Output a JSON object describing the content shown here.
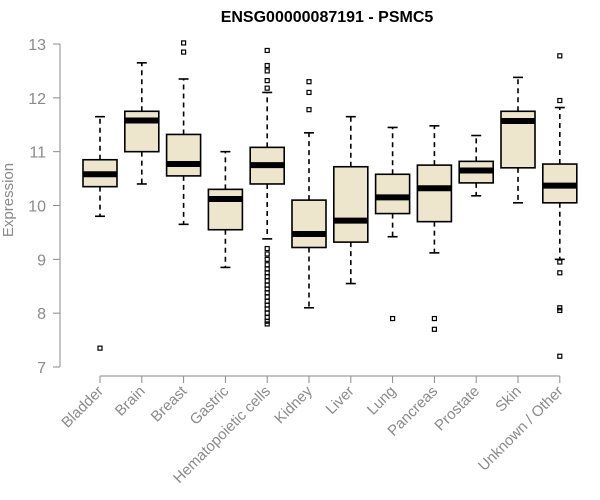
{
  "chart_data": {
    "type": "boxplot",
    "title": "ENSG00000087191 - PSMC5",
    "xlabel": "",
    "ylabel": "Expression",
    "ylim": [
      7,
      13
    ],
    "yticks": [
      7,
      8,
      9,
      10,
      11,
      12,
      13
    ],
    "grid": false,
    "box_color": "#ede6cd",
    "categories": [
      "Bladder",
      "Brain",
      "Breast",
      "Gastric",
      "Hematopoietic cells",
      "Kidney",
      "Liver",
      "Lung",
      "Pancreas",
      "Prostate",
      "Skin",
      "Unknown / Other"
    ],
    "boxes": [
      {
        "category": "Bladder",
        "min": 9.8,
        "q1": 10.35,
        "median": 10.58,
        "q3": 10.85,
        "max": 11.65,
        "outliers": [
          7.35
        ]
      },
      {
        "category": "Brain",
        "min": 10.4,
        "q1": 11.0,
        "median": 11.58,
        "q3": 11.75,
        "max": 12.65,
        "outliers": []
      },
      {
        "category": "Breast",
        "min": 9.65,
        "q1": 10.55,
        "median": 10.77,
        "q3": 11.32,
        "max": 12.35,
        "outliers": [
          12.85,
          13.02
        ]
      },
      {
        "category": "Gastric",
        "min": 8.85,
        "q1": 9.55,
        "median": 10.12,
        "q3": 10.3,
        "max": 11.0,
        "outliers": []
      },
      {
        "category": "Hematopoietic cells",
        "min": 9.38,
        "q1": 10.4,
        "median": 10.75,
        "q3": 11.08,
        "max": 12.1,
        "outliers": [
          12.88,
          12.6,
          12.5,
          12.32,
          12.18,
          9.2,
          9.1,
          9.0,
          8.9,
          8.82,
          8.75,
          8.68,
          8.6,
          8.52,
          8.45,
          8.38,
          8.3,
          8.22,
          8.15,
          8.08,
          8.0,
          7.92,
          7.85,
          7.8
        ]
      },
      {
        "category": "Kidney",
        "min": 8.1,
        "q1": 9.22,
        "median": 9.47,
        "q3": 10.1,
        "max": 11.35,
        "outliers": [
          11.78,
          12.1,
          12.3
        ]
      },
      {
        "category": "Liver",
        "min": 8.55,
        "q1": 9.32,
        "median": 9.72,
        "q3": 10.72,
        "max": 11.65,
        "outliers": []
      },
      {
        "category": "Lung",
        "min": 9.42,
        "q1": 9.85,
        "median": 10.15,
        "q3": 10.58,
        "max": 11.45,
        "outliers": [
          7.9
        ]
      },
      {
        "category": "Pancreas",
        "min": 9.12,
        "q1": 9.7,
        "median": 10.32,
        "q3": 10.75,
        "max": 11.48,
        "outliers": [
          7.9,
          7.7
        ]
      },
      {
        "category": "Prostate",
        "min": 10.18,
        "q1": 10.42,
        "median": 10.65,
        "q3": 10.82,
        "max": 11.3,
        "outliers": []
      },
      {
        "category": "Skin",
        "min": 10.05,
        "q1": 10.7,
        "median": 11.57,
        "q3": 11.75,
        "max": 12.38,
        "outliers": []
      },
      {
        "category": "Unknown / Other",
        "min": 9.0,
        "q1": 10.05,
        "median": 10.37,
        "q3": 10.77,
        "max": 11.82,
        "outliers": [
          12.78,
          11.95,
          8.95,
          8.75,
          8.1,
          8.05,
          7.2
        ]
      }
    ]
  }
}
